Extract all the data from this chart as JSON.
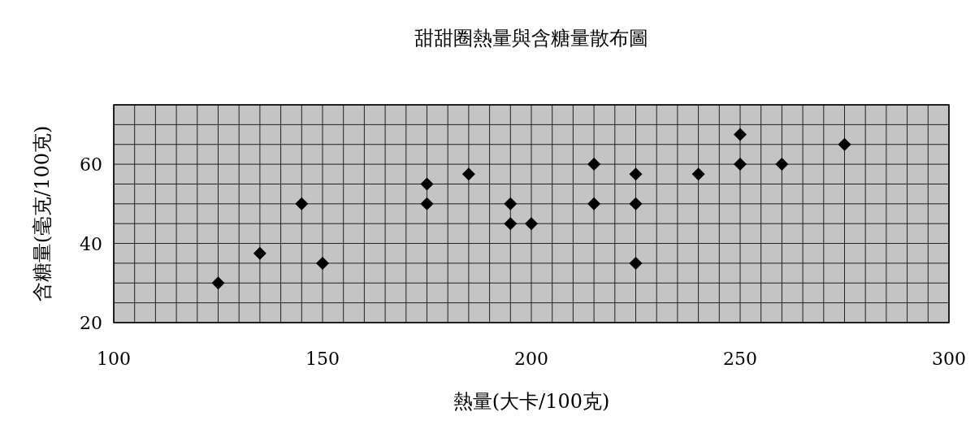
{
  "chart_data": {
    "type": "scatter",
    "title": "甜甜圈熱量與含糖量散布圖",
    "xlabel": "熱量(大卡/100克)",
    "ylabel": "含糖量(毫克/100克)",
    "x": [
      125,
      135,
      145,
      150,
      175,
      175,
      185,
      195,
      195,
      200,
      215,
      215,
      225,
      225,
      225,
      240,
      250,
      250,
      260,
      275
    ],
    "series": [
      {
        "color": "#000000",
        "values": [
          30,
          37.5,
          50,
          35,
          55,
          50,
          57.5,
          50,
          45,
          45,
          60,
          50,
          57.5,
          50,
          35,
          57.5,
          67.5,
          60,
          60,
          65
        ]
      }
    ],
    "marker": "diamond",
    "grid": true,
    "xlim": [
      100,
      300
    ],
    "ylim": [
      20,
      75
    ],
    "xticks": [
      100,
      {
        "value": 105,
        "label": null
      },
      {
        "value": 110,
        "label": null
      },
      {
        "value": 115,
        "label": null
      },
      {
        "value": 120,
        "label": null
      },
      {
        "value": 125,
        "label": null
      },
      {
        "value": 130,
        "label": null
      },
      {
        "value": 135,
        "label": null
      },
      {
        "value": 140,
        "label": null
      },
      {
        "value": 145,
        "label": null
      },
      150,
      {
        "value": 155,
        "label": null
      },
      {
        "value": 160,
        "label": null
      },
      {
        "value": 165,
        "label": null
      },
      {
        "value": 170,
        "label": null
      },
      {
        "value": 175,
        "label": null
      },
      {
        "value": 180,
        "label": null
      },
      {
        "value": 185,
        "label": null
      },
      {
        "value": 190,
        "label": null
      },
      {
        "value": 195,
        "label": null
      },
      200,
      {
        "value": 205,
        "label": null
      },
      {
        "value": 210,
        "label": null
      },
      {
        "value": 215,
        "label": null
      },
      {
        "value": 220,
        "label": null
      },
      {
        "value": 225,
        "label": null
      },
      {
        "value": 230,
        "label": null
      },
      {
        "value": 235,
        "label": null
      },
      {
        "value": 240,
        "label": null
      },
      {
        "value": 245,
        "label": null
      },
      250,
      {
        "value": 255,
        "label": null
      },
      {
        "value": 260,
        "label": null
      },
      {
        "value": 265,
        "label": null
      },
      {
        "value": 270,
        "label": null
      },
      {
        "value": 275,
        "label": null
      },
      {
        "value": 280,
        "label": null
      },
      {
        "value": 285,
        "label": null
      },
      {
        "value": 290,
        "label": null
      },
      {
        "value": 295,
        "label": null
      },
      300
    ],
    "yticks": [
      20,
      {
        "value": 25,
        "label": null
      },
      {
        "value": 30,
        "label": null
      },
      {
        "value": 35,
        "label": null
      },
      40,
      {
        "value": 45,
        "label": null
      },
      {
        "value": 50,
        "label": null
      },
      {
        "value": 55,
        "label": null
      },
      60,
      {
        "value": 65,
        "label": null
      },
      {
        "value": 70,
        "label": null
      },
      {
        "value": 75,
        "label": null
      }
    ]
  }
}
